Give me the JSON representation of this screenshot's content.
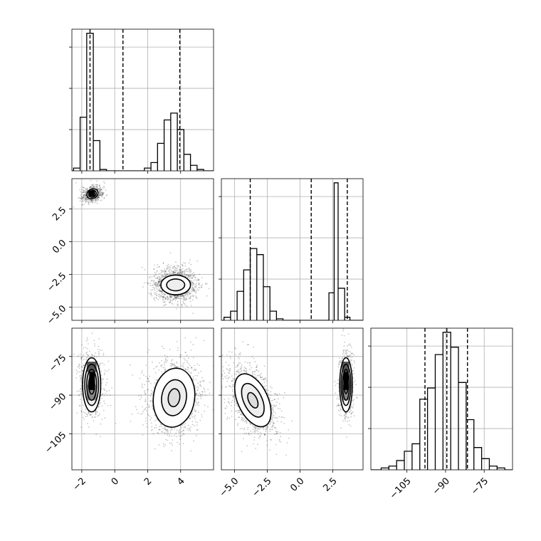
{
  "chart_data": {
    "type": "corner",
    "grid": true,
    "parameters": [
      {
        "name": "",
        "range": [
          -2.6,
          6.0
        ],
        "ticks": [
          "−2",
          "0",
          "2",
          "4"
        ],
        "tick_values": [
          -2,
          0,
          2,
          4
        ]
      },
      {
        "name": "",
        "range": [
          -6.0,
          4.8
        ],
        "ticks": [
          "−5.0",
          "−2.5",
          "0.0",
          "2.5"
        ],
        "tick_values": [
          -5.0,
          -2.5,
          0.0,
          2.5
        ]
      },
      {
        "name": "",
        "range": [
          -119,
          -64
        ],
        "ticks": [
          "−105",
          "−90",
          "−75"
        ],
        "tick_values": [
          -105,
          -90,
          -75
        ]
      }
    ],
    "histograms": [
      {
        "param": 0,
        "quantiles": [
          -1.5,
          0.5,
          3.95
        ],
        "bins": [
          {
            "x": [
              -2.5,
              -2.1
            ],
            "count": 0.02
          },
          {
            "x": [
              -2.1,
              -1.7
            ],
            "count": 0.39
          },
          {
            "x": [
              -1.7,
              -1.3
            ],
            "count": 1.0
          },
          {
            "x": [
              -1.3,
              -0.9
            ],
            "count": 0.22
          },
          {
            "x": [
              -0.9,
              -0.5
            ],
            "count": 0.01
          },
          {
            "x": [
              1.8,
              2.2
            ],
            "count": 0.02
          },
          {
            "x": [
              2.2,
              2.6
            ],
            "count": 0.06
          },
          {
            "x": [
              2.6,
              3.0
            ],
            "count": 0.2
          },
          {
            "x": [
              3.0,
              3.4
            ],
            "count": 0.37
          },
          {
            "x": [
              3.4,
              3.8
            ],
            "count": 0.42
          },
          {
            "x": [
              3.8,
              4.2
            ],
            "count": 0.3
          },
          {
            "x": [
              4.2,
              4.6
            ],
            "count": 0.12
          },
          {
            "x": [
              4.6,
              5.0
            ],
            "count": 0.04
          },
          {
            "x": [
              5.0,
              5.4
            ],
            "count": 0.01
          }
        ]
      },
      {
        "param": 1,
        "quantiles": [
          -3.8,
          0.85,
          3.6
        ],
        "bins": [
          {
            "x": [
              -5.8,
              -5.3
            ],
            "count": 0.02
          },
          {
            "x": [
              -5.3,
              -4.8
            ],
            "count": 0.06
          },
          {
            "x": [
              -4.8,
              -4.3
            ],
            "count": 0.19
          },
          {
            "x": [
              -4.3,
              -3.8
            ],
            "count": 0.33
          },
          {
            "x": [
              -3.8,
              -3.3
            ],
            "count": 0.47
          },
          {
            "x": [
              -3.3,
              -2.8
            ],
            "count": 0.43
          },
          {
            "x": [
              -2.8,
              -2.3
            ],
            "count": 0.22
          },
          {
            "x": [
              -2.3,
              -1.8
            ],
            "count": 0.06
          },
          {
            "x": [
              -1.8,
              -1.3
            ],
            "count": 0.01
          },
          {
            "x": [
              2.2,
              2.6
            ],
            "count": 0.18
          },
          {
            "x": [
              2.6,
              2.9
            ],
            "count": 0.9
          },
          {
            "x": [
              2.9,
              3.4
            ],
            "count": 0.21
          },
          {
            "x": [
              3.4,
              3.8
            ],
            "count": 0.02
          }
        ]
      },
      {
        "param": 2,
        "quantiles": [
          -98,
          -89.5,
          -81.5
        ],
        "bins": [
          {
            "x": [
              -115,
              -112
            ],
            "count": 0.01
          },
          {
            "x": [
              -112,
              -109
            ],
            "count": 0.02
          },
          {
            "x": [
              -109,
              -106
            ],
            "count": 0.05
          },
          {
            "x": [
              -106,
              -103
            ],
            "count": 0.1
          },
          {
            "x": [
              -103,
              -100
            ],
            "count": 0.14
          },
          {
            "x": [
              -100,
              -97
            ],
            "count": 0.38
          },
          {
            "x": [
              -97,
              -94
            ],
            "count": 0.44
          },
          {
            "x": [
              -94,
              -91
            ],
            "count": 0.62
          },
          {
            "x": [
              -91,
              -88
            ],
            "count": 0.74
          },
          {
            "x": [
              -88,
              -85
            ],
            "count": 0.66
          },
          {
            "x": [
              -85,
              -82
            ],
            "count": 0.47
          },
          {
            "x": [
              -82,
              -79
            ],
            "count": 0.27
          },
          {
            "x": [
              -79,
              -76
            ],
            "count": 0.12
          },
          {
            "x": [
              -76,
              -73
            ],
            "count": 0.06
          },
          {
            "x": [
              -73,
              -70
            ],
            "count": 0.02
          },
          {
            "x": [
              -70,
              -67
            ],
            "count": 0.01
          }
        ]
      }
    ],
    "scatter_panels": [
      {
        "x_param": 0,
        "y_param": 1,
        "clusters": [
          {
            "center": [
              -1.35,
              3.65
            ],
            "sd": [
              0.3,
              0.28
            ],
            "rotation_deg": -30,
            "n_points": 500,
            "contours": [
              [
                0.35,
                0.35
              ],
              [
                0.24,
                0.25
              ],
              [
                0.14,
                0.15
              ]
            ],
            "cells": [
              {
                "x": [
                  -1.6,
                  -1.2
                ],
                "y": [
                  3.45,
                  3.9
                ],
                "shade": "#000000"
              }
            ]
          },
          {
            "center": [
              3.7,
              -3.3
            ],
            "sd": [
              0.55,
              0.55
            ],
            "rotation_deg": 0,
            "n_points": 1400,
            "contours": [
              [
                0.9,
                0.75
              ],
              [
                0.55,
                0.45
              ]
            ],
            "cells": []
          }
        ]
      },
      {
        "x_param": 0,
        "y_param": 2,
        "clusters": [
          {
            "center": [
              -1.4,
              -86
            ],
            "sd": [
              0.35,
              6.0
            ],
            "rotation_deg": 0,
            "n_points": 600,
            "contours": [
              [
                0.55,
                10.5
              ],
              [
                0.42,
                8.0
              ],
              [
                0.3,
                6.0
              ],
              [
                0.18,
                3.6
              ]
            ],
            "cells": [
              {
                "x": [
                  -1.7,
                  -1.1
                ],
                "y": [
                  -92,
                  -86
                ],
                "shade": "#888888"
              },
              {
                "x": [
                  -1.55,
                  -1.2
                ],
                "y": [
                  -88,
                  -81
                ],
                "shade": "#000000"
              },
              {
                "x": [
                  -1.7,
                  -1.1
                ],
                "y": [
                  -81,
                  -77
                ],
                "shade": "#555555"
              }
            ]
          },
          {
            "center": [
              3.6,
              -91
            ],
            "sd": [
              0.7,
              6.0
            ],
            "rotation_deg": 8,
            "n_points": 1400,
            "contours": [
              [
                1.25,
                11.5
              ],
              [
                0.75,
                7.0
              ],
              [
                0.35,
                3.5
              ]
            ],
            "cells": []
          }
        ]
      },
      {
        "x_param": 1,
        "y_param": 2,
        "clusters": [
          {
            "center": [
              -3.6,
              -92
            ],
            "sd": [
              0.65,
              6.5
            ],
            "rotation_deg": -25,
            "n_points": 1300,
            "contours": [
              [
                1.15,
                11.0
              ],
              [
                0.7,
                7.0
              ],
              [
                0.32,
                3.2
              ]
            ],
            "cells": []
          },
          {
            "center": [
              3.5,
              -86
            ],
            "sd": [
              0.25,
              6.0
            ],
            "rotation_deg": 0,
            "n_points": 600,
            "contours": [
              [
                0.48,
                10.5
              ],
              [
                0.37,
                8.0
              ],
              [
                0.26,
                6.0
              ],
              [
                0.15,
                3.4
              ]
            ],
            "cells": [
              {
                "x": [
                  3.2,
                  3.75
                ],
                "y": [
                  -92,
                  -86
                ],
                "shade": "#888888"
              },
              {
                "x": [
                  3.3,
                  3.7
                ],
                "y": [
                  -88,
                  -81
                ],
                "shade": "#000000"
              },
              {
                "x": [
                  3.2,
                  3.75
                ],
                "y": [
                  -81,
                  -77
                ],
                "shade": "#555555"
              }
            ]
          }
        ]
      }
    ]
  }
}
